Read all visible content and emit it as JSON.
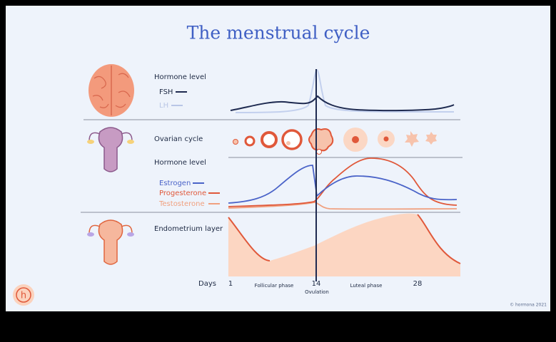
{
  "title": "The menstrual cycle",
  "sections": [
    {
      "label": "Hormone level",
      "legend": [
        "FSH",
        "LH"
      ]
    },
    {
      "label": "Ovarian cycle"
    },
    {
      "label": "Hormone level",
      "legend": [
        "Estrogen",
        "Progesterone",
        "Testosterone"
      ]
    },
    {
      "label": "Endometrium layer"
    }
  ],
  "axis": {
    "label": "Days",
    "ticks": [
      "1",
      "14",
      "28"
    ],
    "phases": [
      "Follicular phase",
      "Ovulation",
      "Luteal phase"
    ]
  },
  "logo": "h",
  "copyright": "© hormona 2021"
}
